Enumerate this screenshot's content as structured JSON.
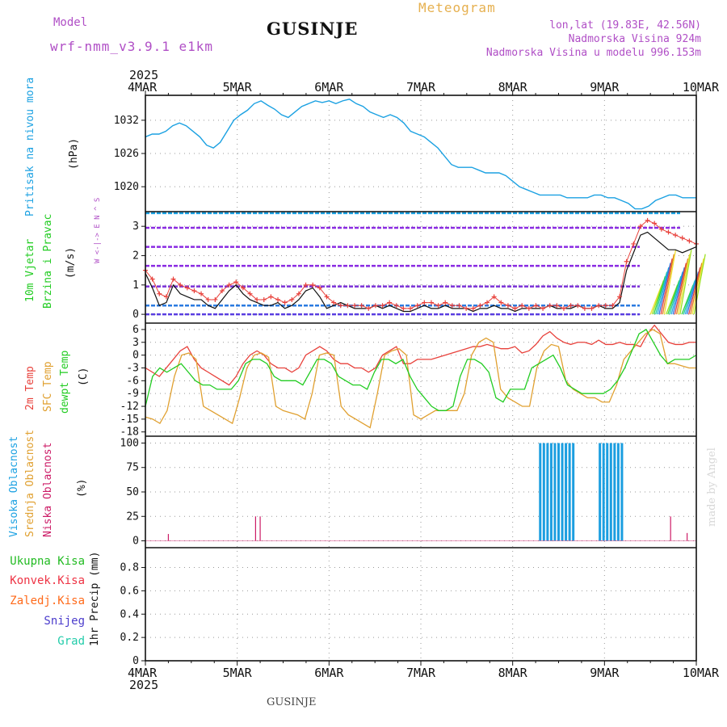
{
  "header": {
    "model_label": "Model",
    "model_name": "wrf-nmm_v3.9.1  e1km",
    "station": "GUSINJE",
    "product": "Meteogram",
    "lonlat": "lon,lat (19.83E, 42.56N)",
    "elevation": "Nadmorska Visina 924m",
    "model_elevation": "Nadmorska Visina u modelu 996.153m",
    "footer_station": "GUSINJE",
    "credit": "made by Angel"
  },
  "colors": {
    "pressure": "#1ba1e2",
    "temp2m": "#e8413b",
    "sfc_temp": "#e0a030",
    "dewpoint": "#22cc22",
    "high_cloud": "#1b9ee0",
    "mid_cloud": "#e0a030",
    "low_cloud": "#cc1b66",
    "wind_barbs": "#8a2be2",
    "model_text": "#b04fc6",
    "meteogram_text": "#e6b04f"
  },
  "time_axis": {
    "year": "2025",
    "ticks": [
      "4MAR",
      "5MAR",
      "6MAR",
      "7MAR",
      "8MAR",
      "9MAR",
      "10MAR"
    ]
  },
  "chart_data": [
    {
      "type": "line",
      "panel": "pressure",
      "ylabel": [
        "Pritisak na nivou mora",
        "(hPa)"
      ],
      "yticks": [
        1020,
        1026,
        1032
      ],
      "ylim": [
        1015.5,
        1036.5
      ],
      "grid": true,
      "series": [
        {
          "values": [
            1029,
            1029.5,
            1029.5,
            1030,
            1031,
            1031.5,
            1031,
            1030,
            1029,
            1027.5,
            1027,
            1028,
            1030,
            1032,
            1033,
            1033.8,
            1035,
            1035.5,
            1034.7,
            1034,
            1033,
            1032.5,
            1033.5,
            1034.5,
            1035,
            1035.5,
            1035.2,
            1035.5,
            1035,
            1035.5,
            1035.8,
            1035,
            1034.5,
            1033.5,
            1033,
            1032.5,
            1033,
            1032.5,
            1031.5,
            1030,
            1029.5,
            1029,
            1028,
            1027,
            1025.5,
            1024,
            1023.5,
            1023.5,
            1023.5,
            1023,
            1022.5,
            1022.5,
            1022.5,
            1022,
            1021,
            1020,
            1019.5,
            1019,
            1018.5,
            1018.5,
            1018.5,
            1018.5,
            1018,
            1018,
            1018,
            1018,
            1018.5,
            1018.5,
            1018,
            1018,
            1017.5,
            1017,
            1016,
            1016,
            1016.5,
            1017.5,
            1018,
            1018.5,
            1018.5,
            1018,
            1018,
            1018
          ]
        }
      ]
    },
    {
      "type": "line",
      "panel": "wind",
      "ylabel": [
        "10m Vjetar",
        "Brzina i Pravac",
        "(m/s)"
      ],
      "compass": "W <-|-> E  N ^ S",
      "yticks": [
        0,
        1,
        2,
        3
      ],
      "ylim": [
        -0.3,
        3.5
      ],
      "barb_rows": [
        0,
        0.3,
        0.95,
        1.65,
        2.3,
        2.95,
        3.45
      ],
      "series": [
        {
          "name": "speed",
          "values": [
            1.4,
            0.9,
            0.3,
            0.4,
            1.0,
            0.7,
            0.6,
            0.5,
            0.5,
            0.3,
            0.2,
            0.5,
            0.8,
            1.0,
            0.7,
            0.5,
            0.4,
            0.3,
            0.3,
            0.4,
            0.2,
            0.3,
            0.5,
            0.8,
            0.9,
            0.6,
            0.2,
            0.3,
            0.4,
            0.3,
            0.2,
            0.2,
            0.2,
            0.3,
            0.2,
            0.3,
            0.2,
            0.1,
            0.1,
            0.2,
            0.3,
            0.2,
            0.2,
            0.3,
            0.2,
            0.2,
            0.2,
            0.1,
            0.2,
            0.2,
            0.3,
            0.2,
            0.2,
            0.1,
            0.2,
            0.2,
            0.2,
            0.2,
            0.3,
            0.2,
            0.2,
            0.2,
            0.3,
            0.2,
            0.2,
            0.3,
            0.2,
            0.2,
            0.4,
            1.5,
            2.1,
            2.7,
            2.8,
            2.6,
            2.4,
            2.2,
            2.2,
            2.1,
            2.2,
            2.3
          ]
        },
        {
          "name": "gust",
          "values": [
            1.5,
            1.2,
            0.7,
            0.6,
            1.2,
            1.0,
            0.9,
            0.8,
            0.7,
            0.5,
            0.5,
            0.8,
            1.0,
            1.1,
            0.9,
            0.7,
            0.5,
            0.5,
            0.6,
            0.5,
            0.4,
            0.5,
            0.7,
            1.0,
            1.0,
            0.9,
            0.6,
            0.4,
            0.3,
            0.3,
            0.3,
            0.3,
            0.2,
            0.3,
            0.3,
            0.4,
            0.3,
            0.2,
            0.2,
            0.3,
            0.4,
            0.4,
            0.3,
            0.4,
            0.3,
            0.3,
            0.2,
            0.2,
            0.3,
            0.4,
            0.6,
            0.4,
            0.3,
            0.2,
            0.3,
            0.2,
            0.3,
            0.2,
            0.3,
            0.3,
            0.2,
            0.3,
            0.3,
            0.2,
            0.2,
            0.3,
            0.3,
            0.3,
            0.6,
            1.8,
            2.4,
            3.0,
            3.2,
            3.1,
            2.9,
            2.8,
            2.7,
            2.6,
            2.5,
            2.4
          ]
        }
      ]
    },
    {
      "type": "line",
      "panel": "temperature",
      "ylabel": [
        "2m Temp",
        "SFC Temp",
        "dewpt Temp",
        "(C)"
      ],
      "yticks": [
        -18,
        -15,
        -12,
        -9,
        -6,
        -3,
        0,
        3,
        6
      ],
      "ylim": [
        -19,
        7.5
      ],
      "series": [
        {
          "name": "2m Temp",
          "values": [
            -3,
            -4,
            -5,
            -3,
            -1,
            1,
            2,
            -1,
            -3,
            -4,
            -5,
            -6,
            -7,
            -5,
            -2,
            0,
            1,
            0,
            -2,
            -3,
            -3,
            -4,
            -3,
            0,
            1,
            2,
            1,
            -1,
            -2,
            -2,
            -3,
            -3,
            -4,
            -3,
            0,
            1,
            2,
            -2,
            -2,
            -1,
            -1,
            -1,
            -0.5,
            0,
            0.5,
            1,
            1.5,
            2,
            2,
            2.5,
            2,
            1.5,
            1.5,
            2,
            0.5,
            1,
            2.5,
            4.5,
            5.5,
            4,
            3,
            2.5,
            3,
            3,
            2.5,
            3.5,
            2.5,
            2.5,
            3,
            2.5,
            2.5,
            2,
            5,
            7,
            5,
            3,
            2.5,
            2.5,
            3,
            3
          ]
        },
        {
          "name": "SFC Temp",
          "values": [
            -14.5,
            -15,
            -16,
            -13,
            -5,
            0,
            0.5,
            -1,
            -12,
            -13,
            -14,
            -15,
            -16,
            -10,
            -3,
            0,
            0.5,
            -0.5,
            -12,
            -13,
            -13.5,
            -14,
            -15,
            -9,
            0,
            0.5,
            0,
            -12,
            -14,
            -15,
            -16,
            -17,
            -9,
            0,
            1,
            1.5,
            0,
            -14,
            -15,
            -14,
            -13,
            -13,
            -13,
            -13,
            -9,
            0,
            3,
            4,
            3,
            -8,
            -10,
            -11,
            -12,
            -12,
            -3,
            1,
            2.5,
            2,
            -6,
            -8,
            -9,
            -10,
            -10,
            -11,
            -11,
            -7,
            -1,
            1,
            3,
            5,
            6,
            5,
            -2,
            -2,
            -2.5,
            -3,
            -3
          ]
        },
        {
          "name": "dewpt Temp",
          "values": [
            -12,
            -5,
            -3,
            -4,
            -3,
            -2,
            -4,
            -6,
            -7,
            -7,
            -8,
            -8,
            -8,
            -6,
            -2,
            -1,
            -1,
            -2,
            -5,
            -6,
            -6,
            -6,
            -7,
            -4,
            -1,
            -1,
            -2,
            -5,
            -6,
            -7,
            -7,
            -8,
            -4,
            -1,
            -1,
            -2,
            -1,
            -5,
            -8,
            -10,
            -12,
            -13,
            -13,
            -12,
            -5,
            -1,
            -1,
            -2,
            -4,
            -10,
            -11,
            -8,
            -8,
            -8,
            -3,
            -2,
            -1,
            0,
            -3,
            -7,
            -8,
            -9,
            -9,
            -9,
            -9,
            -8,
            -6,
            -3,
            1,
            5,
            6,
            3,
            0,
            -2,
            -1,
            -1,
            -1,
            0
          ]
        }
      ]
    },
    {
      "type": "bar",
      "panel": "clouds",
      "ylabel": [
        "Visoka Oblacnost",
        "Srednja Oblacnost",
        "Niska Oblacnost",
        "(%)"
      ],
      "yticks": [
        0,
        25,
        50,
        75,
        100
      ],
      "ylim": [
        -7,
        107
      ],
      "series": [
        {
          "name": "Visoka Oblacnost",
          "points": [
            [
              4.3,
              100
            ],
            [
              4.34,
              100
            ],
            [
              4.38,
              100
            ],
            [
              4.42,
              100
            ],
            [
              4.46,
              100
            ],
            [
              4.5,
              100
            ],
            [
              4.54,
              100
            ],
            [
              4.58,
              100
            ],
            [
              4.62,
              100
            ],
            [
              4.66,
              100
            ],
            [
              4.95,
              100
            ],
            [
              4.99,
              100
            ],
            [
              5.03,
              100
            ],
            [
              5.07,
              100
            ],
            [
              5.11,
              100
            ],
            [
              5.15,
              100
            ],
            [
              5.19,
              100
            ]
          ]
        },
        {
          "name": "Niska Oblacnost",
          "points": [
            [
              0.25,
              7
            ],
            [
              1.2,
              25
            ],
            [
              1.25,
              25
            ],
            [
              5.72,
              25
            ],
            [
              5.9,
              8
            ]
          ]
        }
      ]
    },
    {
      "type": "bar",
      "panel": "precip",
      "ylabel": [
        "1hr Precip (mm)"
      ],
      "legend": [
        "Ukupna Kisa",
        "Konvek.Kisa",
        "Zaledj.Kisa",
        "Snijeg",
        "Grad"
      ],
      "legend_colors": [
        "#22bb22",
        "#ee3344",
        "#ff6a1a",
        "#4b3ccc",
        "#22ccaa"
      ],
      "yticks": [
        0,
        0.2,
        0.4,
        0.6,
        0.8
      ],
      "ylim": [
        0,
        0.97
      ],
      "series": []
    }
  ]
}
